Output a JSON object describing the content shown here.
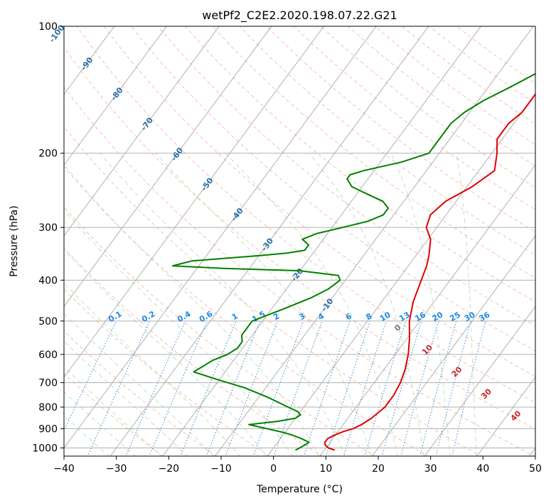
{
  "chart_data": {
    "type": "line",
    "title": "wetPf2_C2E2.2020.198.07.22.G21",
    "xlabel": "Temperature (°C)",
    "ylabel": "Pressure (hPa)",
    "xlim": [
      -40,
      50
    ],
    "ylim": [
      1050,
      100
    ],
    "y_scale": "log",
    "grid": true,
    "x_ticks": [
      -40,
      -30,
      -20,
      -10,
      0,
      10,
      20,
      30,
      40,
      50
    ],
    "y_ticks": [
      1000,
      900,
      800,
      700,
      600,
      500,
      400,
      300,
      200,
      100
    ],
    "colors": {
      "temperature": "#e00000",
      "dewpoint": "#008000",
      "isotherm": "#4a9bd6",
      "mixing_ratio": "#1e88e5",
      "moist_adiabat_label": "#c62828",
      "zero_label": "#777777"
    },
    "series": [
      {
        "key": "temperature",
        "p": [
          1012,
          1000,
          985,
          970,
          950,
          930,
          915,
          900,
          880,
          850,
          800,
          750,
          700,
          650,
          600,
          550,
          500,
          450,
          400,
          370,
          350,
          320,
          300,
          280,
          260,
          240,
          220,
          200,
          185,
          170,
          160,
          150,
          140,
          130,
          120,
          110,
          105,
          100
        ],
        "t": [
          12,
          10.5,
          9.5,
          9,
          9,
          10,
          11,
          12.5,
          13.5,
          14.5,
          15.5,
          15.5,
          15,
          14,
          12.5,
          10.5,
          8,
          6,
          4.5,
          3.5,
          2.5,
          0.5,
          -2,
          -3,
          -2,
          1,
          3,
          1,
          -1,
          -1,
          0,
          0,
          0,
          0,
          -1,
          -1,
          0,
          1
        ]
      },
      {
        "key": "dewpoint",
        "p": [
          1012,
          1000,
          985,
          970,
          950,
          930,
          915,
          905,
          890,
          880,
          865,
          850,
          835,
          820,
          800,
          760,
          720,
          690,
          670,
          660,
          640,
          620,
          600,
          580,
          560,
          540,
          520,
          500,
          470,
          440,
          420,
          400,
          390,
          380,
          375,
          370,
          360,
          350,
          345,
          340,
          330,
          320,
          310,
          300,
          290,
          280,
          270,
          260,
          250,
          240,
          230,
          225,
          220,
          210,
          200,
          190,
          180,
          170,
          160,
          150,
          140,
          130,
          120,
          110,
          105,
          100
        ],
        "t": [
          4.5,
          5,
          5.5,
          6,
          4,
          1.5,
          -1,
          -3,
          -6,
          -8,
          -3,
          0,
          0.5,
          -0.5,
          -3,
          -8,
          -14,
          -20,
          -24,
          -26,
          -25,
          -24,
          -22,
          -21,
          -21,
          -22,
          -22,
          -22,
          -18,
          -14,
          -12,
          -11,
          -12,
          -20,
          -35,
          -45,
          -42,
          -30,
          -25,
          -22,
          -22,
          -24,
          -22,
          -18,
          -14,
          -12,
          -12,
          -14,
          -18,
          -22,
          -24,
          -24,
          -22,
          -16,
          -12,
          -12,
          -12,
          -12,
          -11,
          -9,
          -6,
          -3,
          -1,
          1,
          2,
          3
        ]
      }
    ],
    "isotherm_labels": [
      -100,
      -90,
      -80,
      -70,
      -60,
      -50,
      -40,
      -30,
      -20,
      -10
    ],
    "mixing_ratio_labels": [
      0.1,
      0.2,
      0.4,
      0.6,
      1,
      1.5,
      2,
      3,
      4,
      6,
      8,
      10,
      13,
      16,
      20,
      25,
      30,
      36
    ],
    "moist_adiabat_labels": [
      0,
      10,
      20,
      30,
      40
    ]
  }
}
